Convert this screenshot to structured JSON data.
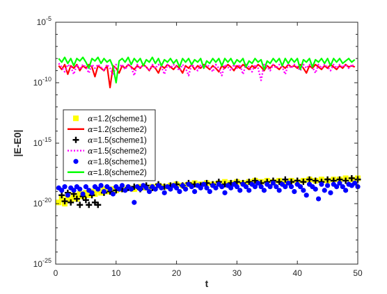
{
  "chart_data": {
    "type": "scatter",
    "title": "",
    "xlabel": "t",
    "ylabel": "|E-E0|",
    "xlim": [
      0,
      50
    ],
    "ylim_exp": [
      -25,
      -5
    ],
    "y_scale": "log",
    "grid": false,
    "legend_position": "center-left",
    "x_ticks": [
      0,
      10,
      20,
      30,
      40,
      50
    ],
    "y_tick_exponents": [
      -25,
      -20,
      -15,
      -10,
      -5
    ],
    "y_tick_labels": [
      {
        "base": "10",
        "exp": "-25"
      },
      {
        "base": "10",
        "exp": "-20"
      },
      {
        "base": "10",
        "exp": "-15"
      },
      {
        "base": "10",
        "exp": "-10"
      },
      {
        "base": "10",
        "exp": "-5"
      }
    ],
    "series": [
      {
        "name": "α=1.2(scheme1)",
        "legend_prefix": "α",
        "legend_suffix": "=1.2(scheme1)",
        "style": "marker",
        "marker": "square",
        "color": "#ffff00",
        "x": [
          0.5,
          1,
          1.5,
          2,
          2.5,
          3,
          3.5,
          4,
          4.5,
          5,
          5.5,
          6,
          6.5,
          7,
          7.5,
          8,
          8.5,
          9,
          9.5,
          10,
          11,
          12,
          13,
          14,
          15,
          16,
          17,
          18,
          19,
          20,
          21,
          22,
          23,
          24,
          25,
          26,
          27,
          28,
          29,
          30,
          31,
          32,
          33,
          34,
          35,
          36,
          37,
          38,
          39,
          40,
          41,
          42,
          43,
          44,
          45,
          46,
          47,
          48,
          49,
          50
        ],
        "y_exp": [
          -19.9,
          -19.6,
          -20.0,
          -19.5,
          -19.7,
          -19.3,
          -19.6,
          -19.2,
          -19.4,
          -19.1,
          -19.3,
          -19.0,
          -19.2,
          -18.9,
          -19.1,
          -18.8,
          -19.0,
          -18.9,
          -18.8,
          -18.9,
          -18.8,
          -18.7,
          -18.8,
          -18.6,
          -18.7,
          -18.6,
          -18.5,
          -18.6,
          -18.5,
          -18.4,
          -18.5,
          -18.4,
          -18.3,
          -18.4,
          -18.3,
          -18.4,
          -18.3,
          -18.2,
          -18.3,
          -18.2,
          -18.3,
          -18.2,
          -18.1,
          -18.2,
          -18.1,
          -18.2,
          -18.1,
          -18.2,
          -18.1,
          -18.2,
          -18.1,
          -18.0,
          -18.1,
          -18.0,
          -18.1,
          -18.0,
          -18.0,
          -17.9,
          -18.0,
          -17.9
        ]
      },
      {
        "name": "α=1.2(scheme2)",
        "legend_prefix": "α",
        "legend_suffix": "=1.2(scheme2)",
        "style": "line",
        "dash": "solid",
        "color": "#ff0000",
        "x": [
          0.5,
          1,
          1.5,
          2,
          2.5,
          3,
          3.5,
          4,
          4.5,
          5,
          5.5,
          6,
          6.5,
          7,
          7.5,
          8,
          8.5,
          9,
          9.5,
          10,
          10.5,
          11,
          11.5,
          12,
          12.5,
          13,
          13.5,
          14,
          14.5,
          15,
          15.5,
          16,
          16.5,
          17,
          17.5,
          18,
          18.5,
          19,
          19.5,
          20,
          20.5,
          21,
          21.5,
          22,
          22.5,
          23,
          23.5,
          24,
          24.5,
          25,
          25.5,
          26,
          26.5,
          27,
          27.5,
          28,
          28.5,
          29,
          29.5,
          30,
          30.5,
          31,
          31.5,
          32,
          32.5,
          33,
          33.5,
          34,
          34.5,
          35,
          35.5,
          36,
          36.5,
          37,
          37.5,
          38,
          38.5,
          39,
          39.5,
          40,
          40.5,
          41,
          41.5,
          42,
          42.5,
          43,
          43.5,
          44,
          44.5,
          45,
          45.5,
          46,
          46.5,
          47,
          47.5,
          48,
          48.5,
          49,
          49.5
        ],
        "y_exp": [
          -8.6,
          -8.9,
          -8.5,
          -9.3,
          -8.6,
          -8.8,
          -8.5,
          -9.0,
          -8.6,
          -8.8,
          -8.5,
          -8.7,
          -9.5,
          -8.6,
          -8.8,
          -9.0,
          -8.6,
          -10.4,
          -8.6,
          -8.8,
          -9.2,
          -8.6,
          -8.8,
          -8.5,
          -8.7,
          -8.9,
          -8.6,
          -8.8,
          -8.5,
          -8.7,
          -9.0,
          -8.6,
          -8.8,
          -9.2,
          -8.6,
          -8.8,
          -8.5,
          -8.7,
          -8.9,
          -8.6,
          -8.8,
          -9.2,
          -8.6,
          -8.8,
          -8.5,
          -8.9,
          -8.6,
          -8.8,
          -8.5,
          -8.7,
          -8.9,
          -8.6,
          -8.8,
          -9.1,
          -8.6,
          -8.8,
          -8.5,
          -8.7,
          -9.0,
          -8.6,
          -8.8,
          -8.5,
          -8.7,
          -8.9,
          -8.6,
          -8.8,
          -8.5,
          -8.7,
          -9.0,
          -8.6,
          -8.8,
          -8.5,
          -8.7,
          -8.9,
          -8.6,
          -8.8,
          -8.5,
          -8.7,
          -8.6,
          -8.8,
          -8.5,
          -8.8,
          -9.2,
          -8.6,
          -8.8,
          -8.5,
          -8.7,
          -8.9,
          -8.6,
          -8.8,
          -8.5,
          -8.7,
          -8.9,
          -8.6,
          -8.8,
          -8.5,
          -8.7,
          -8.6,
          -8.7
        ]
      },
      {
        "name": "α=1.5(scheme1)",
        "legend_prefix": "α",
        "legend_suffix": "=1.5(scheme1)",
        "style": "marker",
        "marker": "plus",
        "color": "#000000",
        "x": [
          1,
          1.5,
          2,
          2.5,
          3,
          3.5,
          4,
          4.5,
          5,
          5.5,
          6,
          6.5,
          7,
          8,
          9,
          10,
          11,
          12,
          13,
          14,
          15,
          16,
          17,
          18,
          19,
          20,
          21,
          22,
          23,
          24,
          25,
          26,
          27,
          28,
          29,
          30,
          31,
          32,
          33,
          34,
          35,
          36,
          37,
          38,
          39,
          40,
          41,
          42,
          43,
          44,
          45,
          46,
          47,
          48,
          49,
          50
        ],
        "y_exp": [
          -19.3,
          -19.8,
          -19.1,
          -19.9,
          -19.2,
          -19.6,
          -20.1,
          -19.4,
          -19.7,
          -20.1,
          -19.3,
          -19.9,
          -20.1,
          -19.1,
          -19.0,
          -18.9,
          -18.8,
          -18.7,
          -18.6,
          -18.8,
          -18.5,
          -18.7,
          -18.4,
          -18.6,
          -18.5,
          -18.4,
          -18.5,
          -18.3,
          -18.4,
          -18.5,
          -18.3,
          -18.4,
          -18.2,
          -18.4,
          -18.3,
          -18.2,
          -18.3,
          -18.2,
          -18.1,
          -18.3,
          -18.2,
          -18.1,
          -18.2,
          -18.0,
          -18.2,
          -18.1,
          -18.2,
          -18.0,
          -18.1,
          -18.2,
          -18.0,
          -18.1,
          -18.0,
          -18.1,
          -17.9,
          -18.0
        ]
      },
      {
        "name": "α=1.5(scheme2)",
        "legend_prefix": "α",
        "legend_suffix": "=1.5(scheme2)",
        "style": "line",
        "dash": "dotted",
        "color": "#ff00ff",
        "x": [
          0.5,
          1,
          1.5,
          2,
          2.5,
          3,
          3.5,
          4,
          4.5,
          5,
          5.5,
          6,
          6.5,
          7,
          7.5,
          8,
          8.5,
          9,
          9.5,
          10,
          10.5,
          11,
          11.5,
          12,
          12.5,
          13,
          13.5,
          14,
          14.5,
          15,
          15.5,
          16,
          16.5,
          17,
          17.5,
          18,
          18.5,
          19,
          19.5,
          20,
          20.5,
          21,
          21.5,
          22,
          22.5,
          23,
          23.5,
          24,
          24.5,
          25,
          25.5,
          26,
          26.5,
          27,
          27.5,
          28,
          28.5,
          29,
          29.5,
          30,
          30.5,
          31,
          31.5,
          32,
          32.5,
          33,
          33.5,
          34,
          34.5,
          35,
          35.5,
          36,
          36.5,
          37,
          37.5,
          38,
          38.5,
          39,
          39.5,
          40,
          40.5,
          41,
          41.5,
          42,
          42.5,
          43,
          43.5,
          44,
          44.5,
          45,
          45.5,
          46,
          46.5,
          47,
          47.5,
          48,
          48.5,
          49,
          49.5
        ],
        "y_exp": [
          -8.4,
          -8.7,
          -9.1,
          -8.5,
          -8.7,
          -9.3,
          -8.5,
          -8.9,
          -8.5,
          -8.7,
          -9.2,
          -8.5,
          -8.8,
          -8.5,
          -8.7,
          -9.0,
          -8.5,
          -8.8,
          -9.4,
          -8.5,
          -8.7,
          -8.5,
          -8.9,
          -8.5,
          -8.7,
          -9.4,
          -8.5,
          -8.8,
          -8.5,
          -8.7,
          -9.0,
          -8.5,
          -8.8,
          -8.5,
          -8.7,
          -9.3,
          -8.5,
          -8.8,
          -8.5,
          -8.7,
          -9.0,
          -8.5,
          -8.8,
          -9.4,
          -8.5,
          -8.7,
          -9.0,
          -8.5,
          -8.8,
          -8.5,
          -8.7,
          -9.1,
          -8.5,
          -8.8,
          -9.4,
          -8.5,
          -8.7,
          -9.0,
          -8.5,
          -8.8,
          -8.5,
          -9.3,
          -8.5,
          -8.7,
          -9.1,
          -8.5,
          -8.8,
          -9.8,
          -8.5,
          -8.7,
          -9.0,
          -8.5,
          -8.8,
          -8.5,
          -8.7,
          -9.3,
          -8.5,
          -8.8,
          -8.5,
          -8.7,
          -9.0,
          -8.5,
          -8.8,
          -8.5,
          -8.7,
          -9.2,
          -8.5,
          -8.8,
          -8.5,
          -8.7,
          -9.0,
          -8.5,
          -8.8,
          -8.5,
          -8.7,
          -8.5,
          -8.8,
          -8.5,
          -8.7
        ]
      },
      {
        "name": "α=1.8(scheme1)",
        "legend_prefix": "α",
        "legend_suffix": "=1.8(scheme1)",
        "style": "marker",
        "marker": "circle",
        "color": "#0000ff",
        "x": [
          0.5,
          1,
          1.5,
          2,
          2.5,
          3,
          3.5,
          4,
          4.5,
          5,
          5.5,
          6,
          6.5,
          7,
          7.5,
          8,
          8.5,
          9,
          9.5,
          10,
          10.5,
          11,
          11.5,
          12,
          12.5,
          13,
          13.5,
          14,
          14.5,
          15,
          15.5,
          16,
          16.5,
          17,
          17.5,
          18,
          18.5,
          19,
          19.5,
          20,
          20.5,
          21,
          21.5,
          22,
          22.5,
          23,
          23.5,
          24,
          24.5,
          25,
          25.5,
          26,
          26.5,
          27,
          27.5,
          28,
          28.5,
          29,
          29.5,
          30,
          30.5,
          31,
          31.5,
          32,
          32.5,
          33,
          33.5,
          34,
          34.5,
          35,
          35.5,
          36,
          36.5,
          37,
          37.5,
          38,
          38.5,
          39,
          39.5,
          40,
          40.5,
          41,
          41.5,
          42,
          42.5,
          43,
          43.5,
          44,
          44.5,
          45,
          45.5,
          46,
          46.5,
          47,
          47.5,
          48,
          48.5,
          49,
          49.5,
          50
        ],
        "y_exp": [
          -18.7,
          -18.9,
          -18.6,
          -19.3,
          -18.7,
          -18.9,
          -18.6,
          -18.8,
          -19.2,
          -18.6,
          -18.9,
          -19.1,
          -18.6,
          -18.8,
          -18.5,
          -19.0,
          -18.6,
          -18.8,
          -19.2,
          -18.6,
          -18.8,
          -18.5,
          -18.9,
          -18.6,
          -18.8,
          -19.9,
          -18.6,
          -18.8,
          -18.5,
          -18.7,
          -19.0,
          -18.6,
          -18.8,
          -18.5,
          -18.7,
          -19.1,
          -18.6,
          -18.8,
          -18.5,
          -18.7,
          -19.0,
          -18.5,
          -18.8,
          -18.4,
          -18.6,
          -19.0,
          -18.5,
          -18.7,
          -18.4,
          -18.7,
          -19.0,
          -18.5,
          -18.7,
          -18.4,
          -18.6,
          -19.1,
          -18.5,
          -18.7,
          -18.4,
          -18.6,
          -18.9,
          -18.4,
          -18.6,
          -18.9,
          -18.4,
          -18.6,
          -18.3,
          -18.6,
          -18.9,
          -18.4,
          -18.6,
          -18.3,
          -18.6,
          -18.9,
          -18.4,
          -18.6,
          -18.3,
          -18.6,
          -19.0,
          -18.4,
          -18.6,
          -18.9,
          -19.3,
          -18.4,
          -18.6,
          -18.8,
          -19.6,
          -18.4,
          -18.9,
          -18.5,
          -19.1,
          -18.4,
          -18.6,
          -18.3,
          -18.6,
          -18.9,
          -18.4,
          -18.5,
          -18.3,
          -18.6
        ]
      },
      {
        "name": "α=1.8(scheme2)",
        "legend_prefix": "α",
        "legend_suffix": "=1.8(scheme2)",
        "style": "line",
        "dash": "solid",
        "color": "#00ff00",
        "x": [
          0.5,
          1,
          1.5,
          2,
          2.5,
          3,
          3.5,
          4,
          4.5,
          5,
          5.5,
          6,
          6.5,
          7,
          7.5,
          8,
          8.5,
          9,
          9.5,
          10,
          10.5,
          11,
          11.5,
          12,
          12.5,
          13,
          13.5,
          14,
          14.5,
          15,
          15.5,
          16,
          16.5,
          17,
          17.5,
          18,
          18.5,
          19,
          19.5,
          20,
          20.5,
          21,
          21.5,
          22,
          22.5,
          23,
          23.5,
          24,
          24.5,
          25,
          25.5,
          26,
          26.5,
          27,
          27.5,
          28,
          28.5,
          29,
          29.5,
          30,
          30.5,
          31,
          31.5,
          32,
          32.5,
          33,
          33.5,
          34,
          34.5,
          35,
          35.5,
          36,
          36.5,
          37,
          37.5,
          38,
          38.5,
          39,
          39.5,
          40,
          40.5,
          41,
          41.5,
          42,
          42.5,
          43,
          43.5,
          44,
          44.5,
          45,
          45.5,
          46,
          46.5,
          47,
          47.5,
          48,
          48.5,
          49,
          49.5
        ],
        "y_exp": [
          -8.0,
          -8.3,
          -7.9,
          -8.4,
          -8.0,
          -8.6,
          -8.0,
          -8.2,
          -7.9,
          -8.3,
          -8.8,
          -8.0,
          -8.2,
          -7.9,
          -8.4,
          -8.0,
          -8.3,
          -8.1,
          -8.7,
          -10.0,
          -8.2,
          -8.0,
          -8.3,
          -7.9,
          -8.5,
          -8.0,
          -8.3,
          -8.0,
          -8.6,
          -8.1,
          -8.3,
          -7.9,
          -8.4,
          -8.0,
          -8.6,
          -8.1,
          -8.3,
          -8.0,
          -8.4,
          -8.1,
          -8.7,
          -8.0,
          -8.3,
          -8.0,
          -8.5,
          -8.1,
          -8.3,
          -8.0,
          -8.8,
          -8.2,
          -8.4,
          -8.0,
          -8.3,
          -8.0,
          -8.6,
          -8.0,
          -8.3,
          -8.0,
          -8.5,
          -8.1,
          -8.3,
          -8.0,
          -8.7,
          -8.2,
          -8.4,
          -8.0,
          -8.3,
          -8.1,
          -8.9,
          -8.2,
          -8.4,
          -8.0,
          -8.3,
          -8.0,
          -8.6,
          -8.0,
          -8.4,
          -8.0,
          -8.3,
          -8.0,
          -8.9,
          -8.1,
          -8.3,
          -8.0,
          -8.7,
          -8.1,
          -8.3,
          -8.0,
          -8.4,
          -8.0,
          -8.6,
          -8.0,
          -8.3,
          -8.0,
          -8.4,
          -8.2,
          -8.0,
          -8.3,
          -8.1
        ]
      }
    ]
  }
}
